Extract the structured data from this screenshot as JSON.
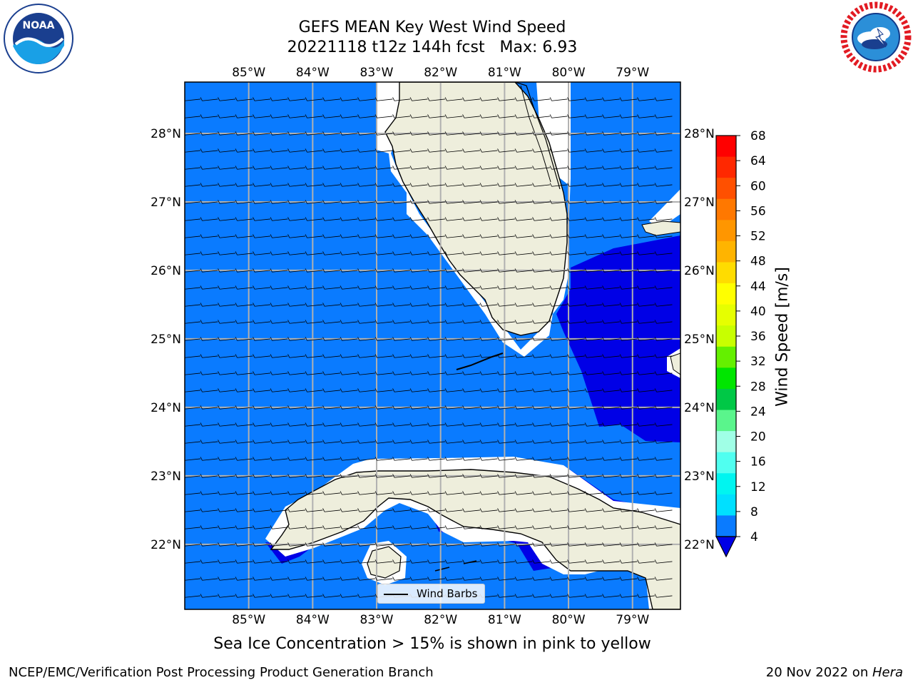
{
  "title": {
    "line1": "GEFS MEAN Key West Wind Speed",
    "line2": "20221118 t12z 144h fcst   Max: 6.93"
  },
  "logos": {
    "left": {
      "icon": "noaa-logo",
      "text": "NOAA",
      "ring_text": "NATIONAL OCEANIC AND ATMOSPHERIC ADMINISTRATION · U.S. DEPARTMENT OF COMMERCE"
    },
    "right": {
      "icon": "nws-logo",
      "ring_text": "NATIONAL WEATHER SERVICE"
    }
  },
  "map": {
    "lon_ticks": [
      "85°W",
      "84°W",
      "83°W",
      "82°W",
      "81°W",
      "80°W",
      "79°W"
    ],
    "lat_ticks": [
      "28°N",
      "27°N",
      "26°N",
      "25°N",
      "24°N",
      "23°N",
      "22°N"
    ],
    "lon_range": [
      -86.0,
      -78.25
    ],
    "lat_range": [
      21.05,
      28.75
    ],
    "colors": {
      "ocean_4_8": "#0a7bff",
      "ocean_lt4": "#0000e6",
      "land": "#eeeedc",
      "grid": "#b0b0b0"
    },
    "legend_label": "Wind Barbs"
  },
  "colorbar": {
    "label": "Wind Speed [m/s]",
    "ticks": [
      "68",
      "64",
      "60",
      "56",
      "52",
      "48",
      "44",
      "40",
      "36",
      "32",
      "28",
      "24",
      "20",
      "16",
      "12",
      "8",
      "4"
    ],
    "colors": [
      "#ff0000",
      "#ff2800",
      "#ff5000",
      "#ff7800",
      "#ff9600",
      "#ffb400",
      "#ffdc00",
      "#ffff00",
      "#e6ff00",
      "#c8ff00",
      "#64f000",
      "#00e600",
      "#00c846",
      "#5af58c",
      "#a0ffe6",
      "#50fff0",
      "#00f5f0",
      "#00e0ff",
      "#0a7bff"
    ],
    "extend_color": "#0000e6"
  },
  "caption": "Sea Ice Concentration > 15% is shown in pink to yellow",
  "footer": {
    "left": "NCEP/EMC/Verification Post Processing Product Generation Branch",
    "right_prefix": "20 Nov 2022 on ",
    "right_italic": "Hera"
  }
}
